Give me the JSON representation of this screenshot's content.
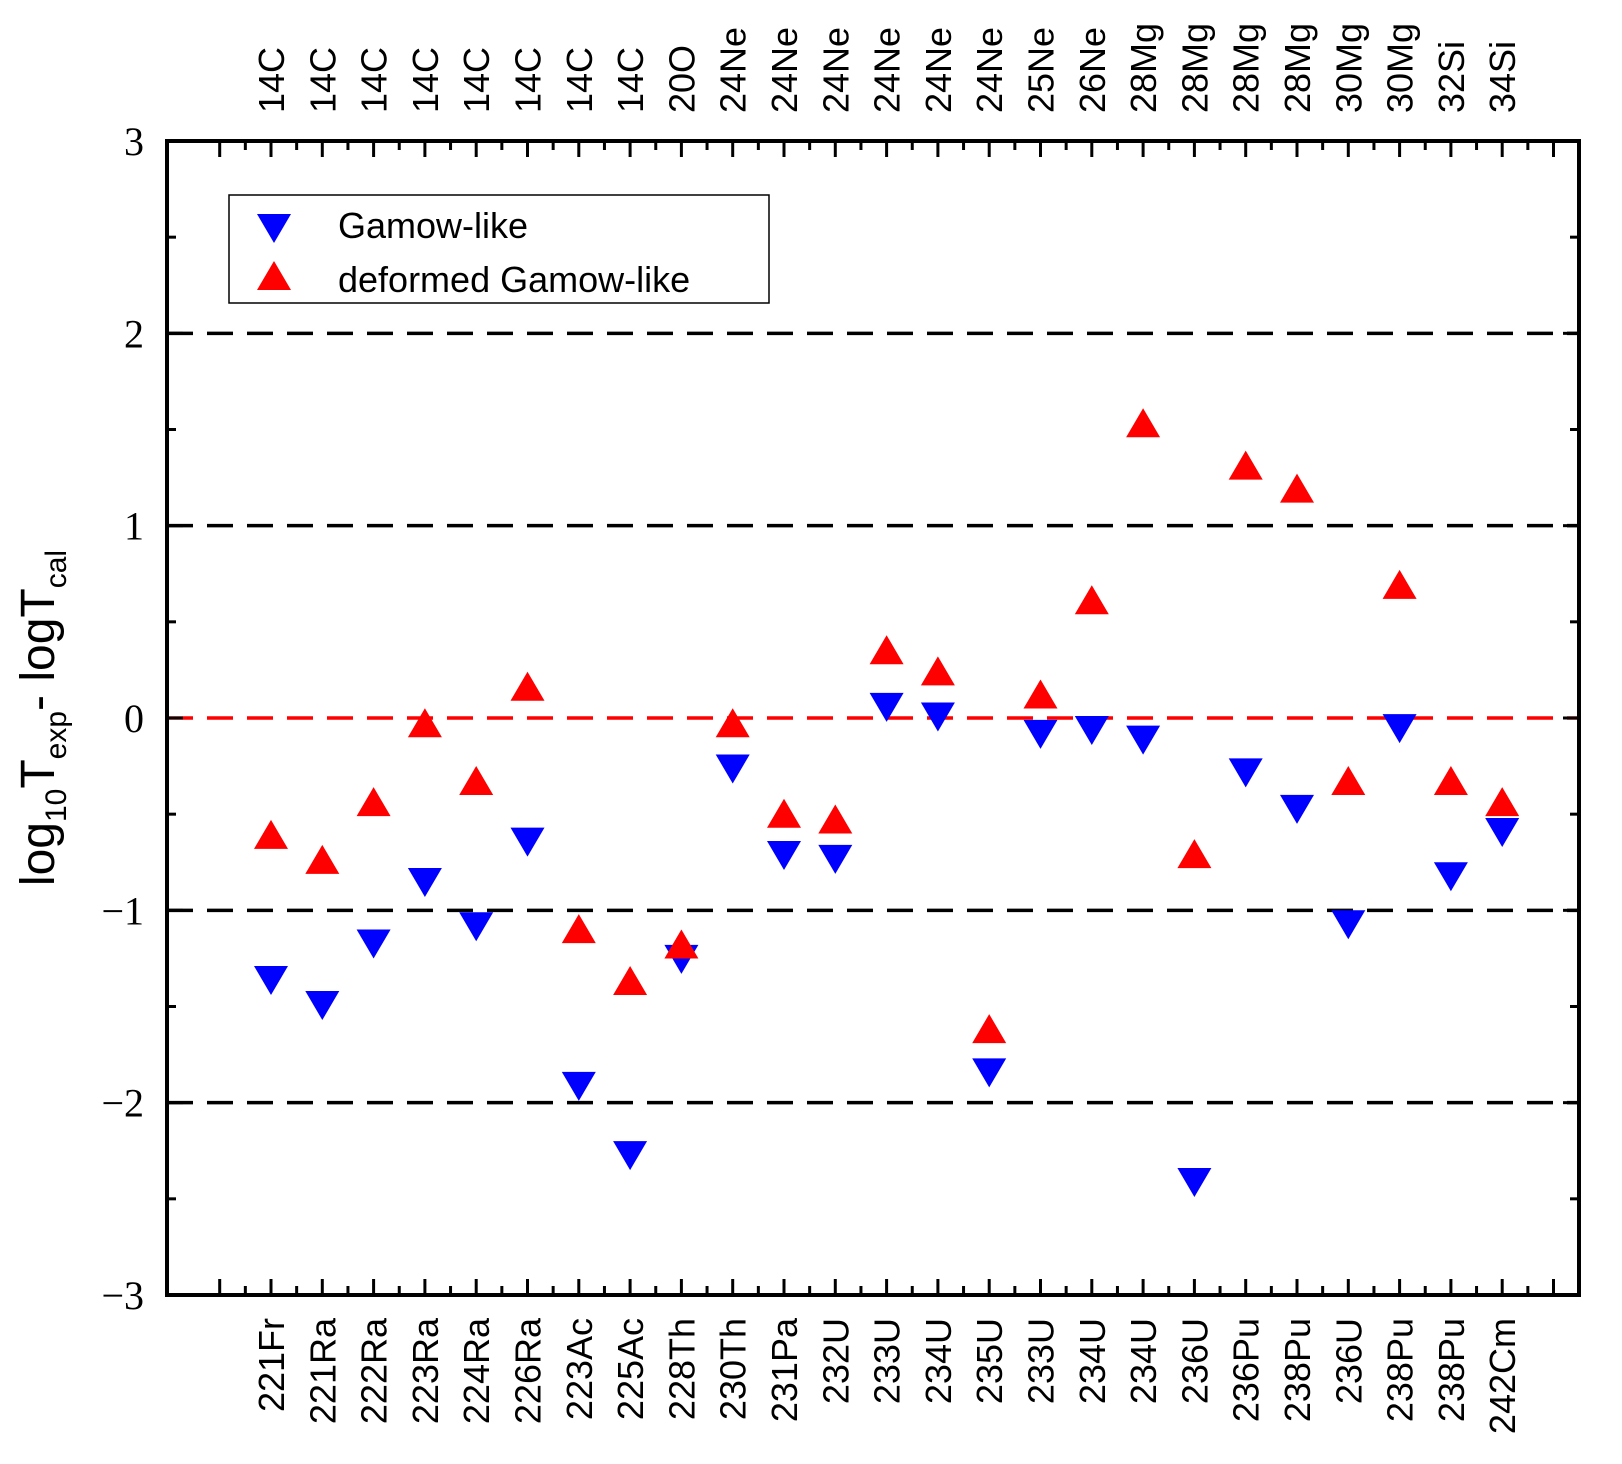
{
  "chart_data": {
    "type": "scatter",
    "xlabel": "",
    "ylabel": {
      "prefix": "log",
      "prefix_sub": "10",
      "t1": "T",
      "t1_sub": "exp",
      "mid": "- logT",
      "t2_sub": "cal"
    },
    "ylim": [
      -3,
      3
    ],
    "yticks": [
      "−3",
      "−2",
      "−1",
      "0",
      "1",
      "2",
      "3"
    ],
    "ytick_values": [
      -3,
      -2,
      -1,
      0,
      1,
      2,
      3
    ],
    "categories_bottom": [
      "221Fr",
      "221Ra",
      "222Ra",
      "223Ra",
      "224Ra",
      "226Ra",
      "223Ac",
      "225Ac",
      "228Th",
      "230Th",
      "231Pa",
      "232U",
      "233U",
      "234U",
      "235U",
      "233U",
      "234U",
      "234U",
      "236U",
      "236Pu",
      "238Pu",
      "236U",
      "238Pu",
      "238Pu",
      "242Cm"
    ],
    "categories_top": [
      "14C",
      "14C",
      "14C",
      "14C",
      "14C",
      "14C",
      "14C",
      "14C",
      "20O",
      "24Ne",
      "24Ne",
      "24Ne",
      "24Ne",
      "24Ne",
      "24Ne",
      "25Ne",
      "26Ne",
      "28Mg",
      "28Mg",
      "28Mg",
      "28Mg",
      "30Mg",
      "30Mg",
      "32Si",
      "34Si"
    ],
    "reference_lines": [
      {
        "y": 2,
        "color": "#000000",
        "style": "dashed"
      },
      {
        "y": 1,
        "color": "#000000",
        "style": "dashed"
      },
      {
        "y": 0,
        "color": "#ff0000",
        "style": "dashed"
      },
      {
        "y": -1,
        "color": "#000000",
        "style": "dashed"
      },
      {
        "y": -2,
        "color": "#000000",
        "style": "dashed"
      }
    ],
    "series": [
      {
        "name": "Gamow-like",
        "marker": "triangle-down",
        "color": "#0000ff",
        "values": [
          -1.35,
          -1.48,
          -1.16,
          -0.84,
          -1.07,
          -0.63,
          -1.9,
          -2.26,
          -1.24,
          -0.25,
          -0.7,
          -0.72,
          0.07,
          0.02,
          -1.83,
          -0.07,
          -0.05,
          -0.1,
          -2.4,
          -0.27,
          -0.46,
          -1.06,
          -0.04,
          -0.81,
          -0.58
        ]
      },
      {
        "name": "deformed Gamow-like",
        "marker": "triangle-up",
        "color": "#ff0000",
        "values": [
          -0.62,
          -0.75,
          -0.45,
          -0.04,
          -0.34,
          0.15,
          -1.11,
          -1.38,
          -1.19,
          -0.04,
          -0.51,
          -0.54,
          0.34,
          0.23,
          -1.63,
          0.11,
          0.6,
          1.52,
          -0.72,
          1.3,
          1.18,
          -0.34,
          0.68,
          -0.34,
          -0.45
        ]
      }
    ],
    "legend": {
      "position": "top-left"
    },
    "grid": false
  }
}
